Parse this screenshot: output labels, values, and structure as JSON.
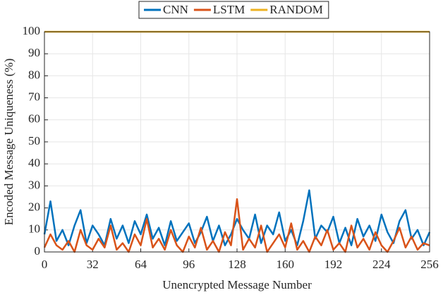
{
  "chart_data": {
    "type": "line",
    "x_label": "Unencrypted Message Number",
    "y_label": "Encoded Message Uniqueness (%)",
    "x": [
      0,
      4,
      8,
      12,
      16,
      20,
      24,
      28,
      32,
      36,
      40,
      44,
      48,
      52,
      56,
      60,
      64,
      68,
      72,
      76,
      80,
      84,
      88,
      92,
      96,
      100,
      104,
      108,
      112,
      116,
      120,
      124,
      128,
      132,
      136,
      140,
      144,
      148,
      152,
      156,
      160,
      164,
      168,
      172,
      176,
      180,
      184,
      188,
      192,
      196,
      200,
      204,
      208,
      212,
      216,
      220,
      224,
      228,
      232,
      236,
      240,
      244,
      248,
      252,
      256
    ],
    "series": [
      {
        "name": "CNN",
        "color": "#0072BD",
        "values": [
          8,
          23,
          5,
          10,
          3,
          12,
          19,
          4,
          12,
          8,
          3,
          15,
          6,
          12,
          4,
          14,
          8,
          17,
          6,
          11,
          3,
          14,
          5,
          9,
          13,
          4,
          9,
          16,
          5,
          12,
          3,
          8,
          15,
          10,
          6,
          17,
          4,
          12,
          8,
          18,
          5,
          10,
          3,
          14,
          28,
          6,
          12,
          9,
          16,
          4,
          11,
          3,
          15,
          7,
          12,
          5,
          17,
          9,
          4,
          14,
          19,
          6,
          10,
          3,
          9
        ]
      },
      {
        "name": "LSTM",
        "color": "#D95319",
        "values": [
          2,
          8,
          3,
          1,
          5,
          0,
          10,
          3,
          1,
          6,
          2,
          12,
          1,
          4,
          0,
          8,
          3,
          15,
          2,
          6,
          1,
          10,
          3,
          0,
          7,
          2,
          11,
          1,
          5,
          0,
          9,
          3,
          24,
          1,
          6,
          2,
          12,
          0,
          4,
          8,
          2,
          13,
          1,
          5,
          0,
          7,
          3,
          10,
          1,
          4,
          0,
          12,
          2,
          6,
          1,
          9,
          3,
          0,
          5,
          11,
          2,
          7,
          1,
          4,
          3
        ]
      },
      {
        "name": "RANDOM",
        "color": "#EDB120",
        "values": [
          100,
          100,
          100,
          100,
          100,
          100,
          100,
          100,
          100,
          100,
          100,
          100,
          100,
          100,
          100,
          100,
          100,
          100,
          100,
          100,
          100,
          100,
          100,
          100,
          100,
          100,
          100,
          100,
          100,
          100,
          100,
          100,
          100,
          100,
          100,
          100,
          100,
          100,
          100,
          100,
          100,
          100,
          100,
          100,
          100,
          100,
          100,
          100,
          100,
          100,
          100,
          100,
          100,
          100,
          100,
          100,
          100,
          100,
          100,
          100,
          100,
          100,
          100,
          100,
          100
        ]
      }
    ],
    "xlim": [
      0,
      256
    ],
    "xticks": [
      0,
      32,
      64,
      96,
      128,
      160,
      192,
      224,
      256
    ],
    "ylim": [
      0,
      100
    ],
    "yticks": [
      0,
      10,
      20,
      30,
      40,
      50,
      60,
      70,
      80,
      90,
      100
    ],
    "grid": true,
    "legend": "top"
  }
}
